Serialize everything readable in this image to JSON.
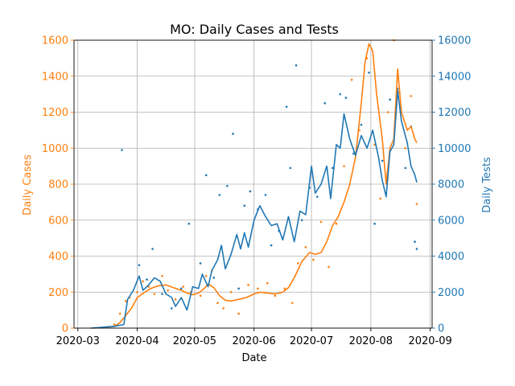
{
  "chart_data": {
    "type": "line",
    "title": "MO: Daily Cases and Tests",
    "xlabel": "Date",
    "ylabel_left": "Daily Cases",
    "ylabel_right": "Daily Tests",
    "colors": {
      "cases": "#ff7f0e",
      "tests": "#1f77b4",
      "grid": "#b0b0b0",
      "axis": "#000000"
    },
    "grid": true,
    "x_ticks": [
      "2020-03",
      "2020-04",
      "2020-05",
      "2020-06",
      "2020-07",
      "2020-08",
      "2020-09"
    ],
    "xlim": [
      "2020-02-28",
      "2020-09-02"
    ],
    "ylim_left": [
      0,
      1600
    ],
    "ylim_right": [
      0,
      16000
    ],
    "left_ticks": [
      0,
      200,
      400,
      600,
      800,
      1000,
      1200,
      1400,
      1600
    ],
    "right_ticks": [
      0,
      2000,
      4000,
      6000,
      8000,
      10000,
      12000,
      14000,
      16000
    ],
    "series": [
      {
        "name": "Daily Cases",
        "axis": "left",
        "points": [
          [
            "2020-03-08",
            0
          ],
          [
            "2020-03-15",
            3
          ],
          [
            "2020-03-20",
            10
          ],
          [
            "2020-03-23",
            30
          ],
          [
            "2020-03-26",
            70
          ],
          [
            "2020-03-29",
            110
          ],
          [
            "2020-04-01",
            170
          ],
          [
            "2020-04-05",
            200
          ],
          [
            "2020-04-08",
            220
          ],
          [
            "2020-04-12",
            235
          ],
          [
            "2020-04-16",
            240
          ],
          [
            "2020-04-20",
            225
          ],
          [
            "2020-04-24",
            210
          ],
          [
            "2020-04-27",
            195
          ],
          [
            "2020-04-30",
            185
          ],
          [
            "2020-05-03",
            195
          ],
          [
            "2020-05-06",
            220
          ],
          [
            "2020-05-08",
            245
          ],
          [
            "2020-05-11",
            225
          ],
          [
            "2020-05-14",
            180
          ],
          [
            "2020-05-17",
            155
          ],
          [
            "2020-05-20",
            150
          ],
          [
            "2020-05-24",
            160
          ],
          [
            "2020-05-28",
            170
          ],
          [
            "2020-06-01",
            190
          ],
          [
            "2020-06-04",
            200
          ],
          [
            "2020-06-08",
            195
          ],
          [
            "2020-06-12",
            190
          ],
          [
            "2020-06-16",
            200
          ],
          [
            "2020-06-19",
            225
          ],
          [
            "2020-06-22",
            280
          ],
          [
            "2020-06-26",
            370
          ],
          [
            "2020-06-30",
            420
          ],
          [
            "2020-07-03",
            410
          ],
          [
            "2020-07-06",
            420
          ],
          [
            "2020-07-09",
            480
          ],
          [
            "2020-07-12",
            570
          ],
          [
            "2020-07-15",
            620
          ],
          [
            "2020-07-18",
            700
          ],
          [
            "2020-07-21",
            800
          ],
          [
            "2020-07-24",
            950
          ],
          [
            "2020-07-27",
            1250
          ],
          [
            "2020-07-29",
            1480
          ],
          [
            "2020-07-31",
            1580
          ],
          [
            "2020-08-02",
            1540
          ],
          [
            "2020-08-04",
            1300
          ],
          [
            "2020-08-07",
            1050
          ],
          [
            "2020-08-09",
            800
          ],
          [
            "2020-08-11",
            1000
          ],
          [
            "2020-08-13",
            1050
          ],
          [
            "2020-08-15",
            1440
          ],
          [
            "2020-08-17",
            1200
          ],
          [
            "2020-08-20",
            1100
          ],
          [
            "2020-08-22",
            1120
          ],
          [
            "2020-08-24",
            1050
          ],
          [
            "2020-08-25",
            1030
          ]
        ],
        "scatter": [
          [
            "2020-03-20",
            20
          ],
          [
            "2020-03-23",
            80
          ],
          [
            "2020-03-26",
            150
          ],
          [
            "2020-03-28",
            170
          ],
          [
            "2020-04-01",
            200
          ],
          [
            "2020-04-04",
            260
          ],
          [
            "2020-04-07",
            230
          ],
          [
            "2020-04-10",
            190
          ],
          [
            "2020-04-14",
            290
          ],
          [
            "2020-04-17",
            210
          ],
          [
            "2020-04-21",
            160
          ],
          [
            "2020-04-25",
            230
          ],
          [
            "2020-04-29",
            200
          ],
          [
            "2020-05-04",
            180
          ],
          [
            "2020-05-07",
            290
          ],
          [
            "2020-05-10",
            320
          ],
          [
            "2020-05-13",
            140
          ],
          [
            "2020-05-16",
            110
          ],
          [
            "2020-05-20",
            200
          ],
          [
            "2020-05-24",
            80
          ],
          [
            "2020-05-29",
            240
          ],
          [
            "2020-06-03",
            220
          ],
          [
            "2020-06-08",
            250
          ],
          [
            "2020-06-12",
            180
          ],
          [
            "2020-06-17",
            220
          ],
          [
            "2020-06-21",
            140
          ],
          [
            "2020-06-24",
            360
          ],
          [
            "2020-06-28",
            450
          ],
          [
            "2020-07-02",
            380
          ],
          [
            "2020-07-06",
            590
          ],
          [
            "2020-07-10",
            340
          ],
          [
            "2020-07-14",
            580
          ],
          [
            "2020-07-18",
            900
          ],
          [
            "2020-07-22",
            1380
          ],
          [
            "2020-07-26",
            1100
          ],
          [
            "2020-07-30",
            1500
          ],
          [
            "2020-08-03",
            1020
          ],
          [
            "2020-08-06",
            720
          ],
          [
            "2020-08-10",
            1200
          ],
          [
            "2020-08-13",
            1600
          ],
          [
            "2020-08-16",
            1310
          ],
          [
            "2020-08-19",
            1000
          ],
          [
            "2020-08-22",
            1290
          ],
          [
            "2020-08-25",
            690
          ]
        ]
      },
      {
        "name": "Daily Tests",
        "axis": "right",
        "points": [
          [
            "2020-03-08",
            0
          ],
          [
            "2020-03-20",
            100
          ],
          [
            "2020-03-25",
            200
          ],
          [
            "2020-03-27",
            1600
          ],
          [
            "2020-03-30",
            2100
          ],
          [
            "2020-04-02",
            2900
          ],
          [
            "2020-04-04",
            2100
          ],
          [
            "2020-04-07",
            2400
          ],
          [
            "2020-04-10",
            2800
          ],
          [
            "2020-04-13",
            2600
          ],
          [
            "2020-04-16",
            1900
          ],
          [
            "2020-04-19",
            1700
          ],
          [
            "2020-04-21",
            1200
          ],
          [
            "2020-04-24",
            1700
          ],
          [
            "2020-04-27",
            1000
          ],
          [
            "2020-04-30",
            2300
          ],
          [
            "2020-05-03",
            2200
          ],
          [
            "2020-05-05",
            3000
          ],
          [
            "2020-05-08",
            2300
          ],
          [
            "2020-05-10",
            3200
          ],
          [
            "2020-05-13",
            3800
          ],
          [
            "2020-05-15",
            4600
          ],
          [
            "2020-05-17",
            3300
          ],
          [
            "2020-05-20",
            4100
          ],
          [
            "2020-05-23",
            5200
          ],
          [
            "2020-05-25",
            4400
          ],
          [
            "2020-05-27",
            5300
          ],
          [
            "2020-05-29",
            4500
          ],
          [
            "2020-06-01",
            6000
          ],
          [
            "2020-06-04",
            6800
          ],
          [
            "2020-06-07",
            6200
          ],
          [
            "2020-06-10",
            5700
          ],
          [
            "2020-06-13",
            5800
          ],
          [
            "2020-06-16",
            4900
          ],
          [
            "2020-06-19",
            6200
          ],
          [
            "2020-06-22",
            4800
          ],
          [
            "2020-06-25",
            6500
          ],
          [
            "2020-06-28",
            6300
          ],
          [
            "2020-07-01",
            9000
          ],
          [
            "2020-07-03",
            7500
          ],
          [
            "2020-07-06",
            8000
          ],
          [
            "2020-07-09",
            9000
          ],
          [
            "2020-07-11",
            7200
          ],
          [
            "2020-07-14",
            10200
          ],
          [
            "2020-07-16",
            10000
          ],
          [
            "2020-07-18",
            11900
          ],
          [
            "2020-07-21",
            10500
          ],
          [
            "2020-07-24",
            9600
          ],
          [
            "2020-07-27",
            10700
          ],
          [
            "2020-07-30",
            10000
          ],
          [
            "2020-08-02",
            11000
          ],
          [
            "2020-08-05",
            9500
          ],
          [
            "2020-08-07",
            8200
          ],
          [
            "2020-08-09",
            7300
          ],
          [
            "2020-08-11",
            9800
          ],
          [
            "2020-08-13",
            10200
          ],
          [
            "2020-08-15",
            13200
          ],
          [
            "2020-08-17",
            11500
          ],
          [
            "2020-08-20",
            10300
          ],
          [
            "2020-08-22",
            9000
          ],
          [
            "2020-08-24",
            8500
          ],
          [
            "2020-08-25",
            8100
          ]
        ],
        "scatter": [
          [
            "2020-03-24",
            9900
          ],
          [
            "2020-04-02",
            3500
          ],
          [
            "2020-04-06",
            2700
          ],
          [
            "2020-04-09",
            4400
          ],
          [
            "2020-04-14",
            1900
          ],
          [
            "2020-04-19",
            1100
          ],
          [
            "2020-04-24",
            2200
          ],
          [
            "2020-04-28",
            5800
          ],
          [
            "2020-05-04",
            3600
          ],
          [
            "2020-05-07",
            8500
          ],
          [
            "2020-05-11",
            2800
          ],
          [
            "2020-05-14",
            7400
          ],
          [
            "2020-05-18",
            7900
          ],
          [
            "2020-05-21",
            10800
          ],
          [
            "2020-05-24",
            2200
          ],
          [
            "2020-05-27",
            6800
          ],
          [
            "2020-05-30",
            7600
          ],
          [
            "2020-06-03",
            6600
          ],
          [
            "2020-06-07",
            7400
          ],
          [
            "2020-06-10",
            4600
          ],
          [
            "2020-06-14",
            5400
          ],
          [
            "2020-06-18",
            12300
          ],
          [
            "2020-06-20",
            8900
          ],
          [
            "2020-06-23",
            14600
          ],
          [
            "2020-06-26",
            6000
          ],
          [
            "2020-06-30",
            7800
          ],
          [
            "2020-07-04",
            7300
          ],
          [
            "2020-07-08",
            12500
          ],
          [
            "2020-07-12",
            8900
          ],
          [
            "2020-07-16",
            13000
          ],
          [
            "2020-07-19",
            12800
          ],
          [
            "2020-07-23",
            9700
          ],
          [
            "2020-07-27",
            11300
          ],
          [
            "2020-07-31",
            14200
          ],
          [
            "2020-08-03",
            5800
          ],
          [
            "2020-08-07",
            9300
          ],
          [
            "2020-08-11",
            12700
          ],
          [
            "2020-08-15",
            13300
          ],
          [
            "2020-08-19",
            8900
          ],
          [
            "2020-08-22",
            11200
          ],
          [
            "2020-08-24",
            4800
          ],
          [
            "2020-08-25",
            4400
          ]
        ]
      }
    ]
  }
}
